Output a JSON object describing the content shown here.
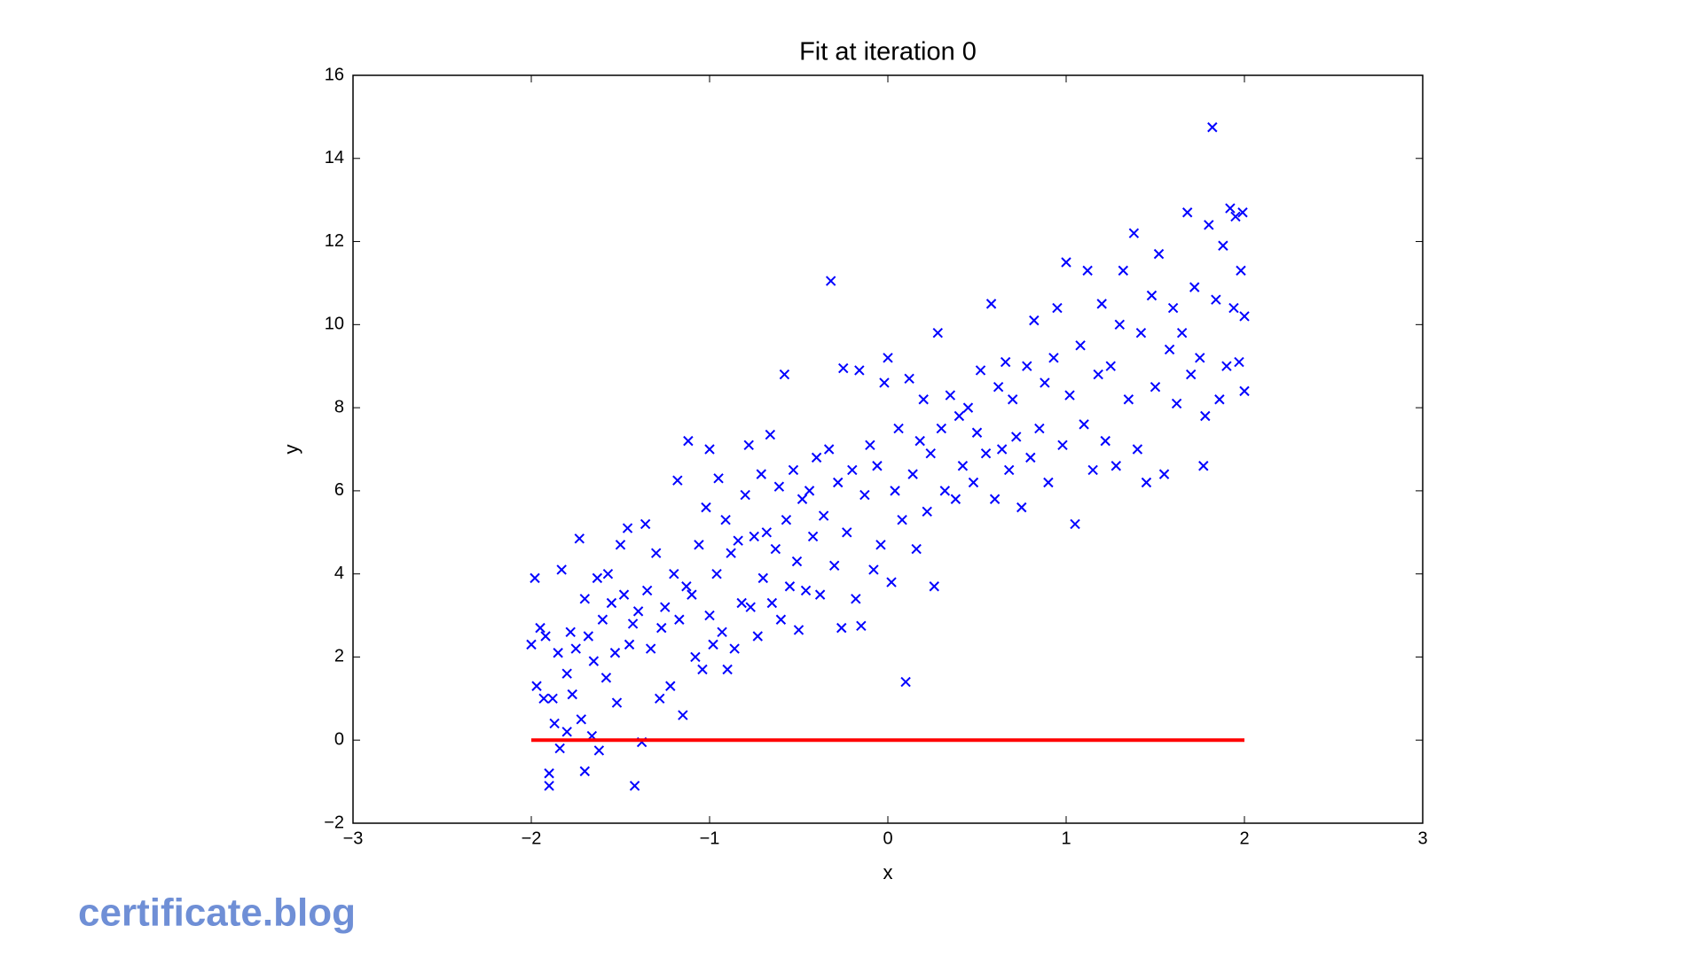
{
  "chart_data": {
    "type": "scatter",
    "title": "Fit at iteration 0",
    "x_label": "x",
    "y_label": "y",
    "xlim": [
      -3,
      3
    ],
    "ylim": [
      -2,
      16
    ],
    "xticks": [
      {
        "value": -3,
        "label": "−3"
      },
      {
        "value": -2,
        "label": "−2"
      },
      {
        "value": -1,
        "label": "−1"
      },
      0,
      1,
      2,
      3
    ],
    "yticks": [
      {
        "value": -2,
        "label": "−2"
      },
      0,
      2,
      4,
      6,
      8,
      10,
      12,
      14,
      16
    ],
    "grid": false,
    "series": [
      {
        "type": "scatter",
        "marker": "x",
        "color": "#0000ff",
        "x": [
          -2.0,
          -1.98,
          -1.97,
          -1.95,
          -1.93,
          -1.92,
          -1.9,
          -1.9,
          -1.88,
          -1.87,
          -1.85,
          -1.84,
          -1.83,
          -1.8,
          -1.8,
          -1.78,
          -1.77,
          -1.75,
          -1.73,
          -1.72,
          -1.7,
          -1.7,
          -1.68,
          -1.66,
          -1.65,
          -1.63,
          -1.62,
          -1.6,
          -1.58,
          -1.57,
          -1.55,
          -1.53,
          -1.52,
          -1.5,
          -1.48,
          -1.46,
          -1.45,
          -1.43,
          -1.42,
          -1.4,
          -1.38,
          -1.36,
          -1.35,
          -1.33,
          -1.3,
          -1.28,
          -1.27,
          -1.25,
          -1.22,
          -1.2,
          -1.18,
          -1.17,
          -1.15,
          -1.13,
          -1.12,
          -1.1,
          -1.08,
          -1.06,
          -1.04,
          -1.02,
          -1.0,
          -1.0,
          -0.98,
          -0.96,
          -0.95,
          -0.93,
          -0.91,
          -0.9,
          -0.88,
          -0.86,
          -0.84,
          -0.82,
          -0.8,
          -0.78,
          -0.77,
          -0.75,
          -0.73,
          -0.71,
          -0.7,
          -0.68,
          -0.66,
          -0.65,
          -0.63,
          -0.61,
          -0.6,
          -0.58,
          -0.57,
          -0.55,
          -0.53,
          -0.51,
          -0.5,
          -0.48,
          -0.46,
          -0.44,
          -0.42,
          -0.4,
          -0.38,
          -0.36,
          -0.33,
          -0.32,
          -0.3,
          -0.28,
          -0.26,
          -0.25,
          -0.23,
          -0.2,
          -0.18,
          -0.16,
          -0.15,
          -0.13,
          -0.1,
          -0.08,
          -0.06,
          -0.04,
          -0.02,
          0.0,
          0.02,
          0.04,
          0.06,
          0.08,
          0.1,
          0.12,
          0.14,
          0.16,
          0.18,
          0.2,
          0.22,
          0.24,
          0.26,
          0.28,
          0.3,
          0.32,
          0.35,
          0.38,
          0.4,
          0.42,
          0.45,
          0.48,
          0.5,
          0.52,
          0.55,
          0.58,
          0.6,
          0.62,
          0.64,
          0.66,
          0.68,
          0.7,
          0.72,
          0.75,
          0.78,
          0.8,
          0.82,
          0.85,
          0.88,
          0.9,
          0.93,
          0.95,
          0.98,
          1.0,
          1.02,
          1.05,
          1.08,
          1.1,
          1.12,
          1.15,
          1.18,
          1.2,
          1.22,
          1.25,
          1.28,
          1.3,
          1.32,
          1.35,
          1.38,
          1.4,
          1.42,
          1.45,
          1.48,
          1.5,
          1.52,
          1.55,
          1.58,
          1.6,
          1.62,
          1.65,
          1.68,
          1.7,
          1.72,
          1.75,
          1.77,
          1.78,
          1.8,
          1.82,
          1.84,
          1.86,
          1.88,
          1.9,
          1.92,
          1.94,
          1.95,
          1.97,
          1.98,
          2.0,
          2.0,
          1.99
        ],
        "values": [
          2.3,
          3.9,
          1.3,
          2.7,
          1.0,
          2.5,
          -0.8,
          -1.1,
          1.0,
          0.4,
          2.1,
          -0.2,
          4.1,
          1.6,
          0.2,
          2.6,
          1.1,
          2.2,
          4.85,
          0.5,
          3.4,
          -0.75,
          2.5,
          0.1,
          1.9,
          3.9,
          -0.25,
          2.9,
          1.5,
          4.0,
          3.3,
          2.1,
          0.9,
          4.7,
          3.5,
          5.1,
          2.3,
          2.8,
          -1.1,
          3.1,
          -0.05,
          5.2,
          3.6,
          2.2,
          4.5,
          1.0,
          2.7,
          3.2,
          1.3,
          4.0,
          6.25,
          2.9,
          0.6,
          3.7,
          7.2,
          3.5,
          2.0,
          4.7,
          1.7,
          5.6,
          7.0,
          3.0,
          2.3,
          4.0,
          6.3,
          2.6,
          5.3,
          1.7,
          4.5,
          2.2,
          4.8,
          3.3,
          5.9,
          7.1,
          3.2,
          4.9,
          2.5,
          6.4,
          3.9,
          5.0,
          7.35,
          3.3,
          4.6,
          6.1,
          2.9,
          8.8,
          5.3,
          3.7,
          6.5,
          4.3,
          2.65,
          5.8,
          3.6,
          6.0,
          4.9,
          6.8,
          3.5,
          5.4,
          7.0,
          11.05,
          4.2,
          6.2,
          2.7,
          8.95,
          5.0,
          6.5,
          3.4,
          8.9,
          2.75,
          5.9,
          7.1,
          4.1,
          6.6,
          4.7,
          8.6,
          9.2,
          3.8,
          6.0,
          7.5,
          5.3,
          1.4,
          8.7,
          6.4,
          4.6,
          7.2,
          8.2,
          5.5,
          6.9,
          3.7,
          9.8,
          7.5,
          6.0,
          8.3,
          5.8,
          7.8,
          6.6,
          8.0,
          6.2,
          7.4,
          8.9,
          6.9,
          10.5,
          5.8,
          8.5,
          7.0,
          9.1,
          6.5,
          8.2,
          7.3,
          5.6,
          9.0,
          6.8,
          10.1,
          7.5,
          8.6,
          6.2,
          9.2,
          10.4,
          7.1,
          11.5,
          8.3,
          5.2,
          9.5,
          7.6,
          11.3,
          6.5,
          8.8,
          10.5,
          7.2,
          9.0,
          6.6,
          10.0,
          11.3,
          8.2,
          12.2,
          7.0,
          9.8,
          6.2,
          10.7,
          8.5,
          11.7,
          6.4,
          9.4,
          10.4,
          8.1,
          9.8,
          12.7,
          8.8,
          10.9,
          9.2,
          6.6,
          7.8,
          12.4,
          14.75,
          10.6,
          8.2,
          11.9,
          9.0,
          12.8,
          10.4,
          12.6,
          9.1,
          11.3,
          10.2,
          8.4,
          12.7
        ]
      },
      {
        "type": "line",
        "color": "#ff0000",
        "x": [
          -2,
          2
        ],
        "values": [
          0,
          0
        ]
      }
    ]
  },
  "watermark": "certificate.blog"
}
